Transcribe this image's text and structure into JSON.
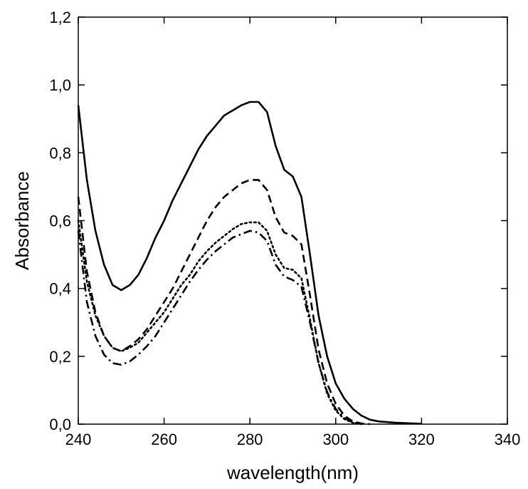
{
  "chart_data": {
    "type": "line",
    "xlabel": "wavelength(nm)",
    "ylabel": "Absorbance",
    "xlim": [
      240,
      340
    ],
    "ylim": [
      0,
      1.2
    ],
    "x_ticks": [
      240,
      260,
      280,
      300,
      320,
      340
    ],
    "x_tick_labels": [
      "240",
      "260",
      "280",
      "300",
      "320",
      "340"
    ],
    "y_ticks": [
      0,
      0.2,
      0.4,
      0.6,
      0.8,
      1.0,
      1.2
    ],
    "y_tick_labels": [
      "0,0",
      "0,2",
      "0,4",
      "0,6",
      "0,8",
      "1,0",
      "1,2"
    ],
    "grid": false,
    "series": [
      {
        "style": "solid",
        "color": "#000000",
        "points": [
          [
            240,
            0.94
          ],
          [
            242,
            0.72
          ],
          [
            244,
            0.57
          ],
          [
            246,
            0.47
          ],
          [
            248,
            0.41
          ],
          [
            250,
            0.395
          ],
          [
            252,
            0.41
          ],
          [
            254,
            0.44
          ],
          [
            256,
            0.49
          ],
          [
            258,
            0.55
          ],
          [
            260,
            0.6
          ],
          [
            262,
            0.66
          ],
          [
            264,
            0.71
          ],
          [
            266,
            0.76
          ],
          [
            268,
            0.81
          ],
          [
            270,
            0.85
          ],
          [
            272,
            0.88
          ],
          [
            274,
            0.91
          ],
          [
            276,
            0.925
          ],
          [
            278,
            0.94
          ],
          [
            280,
            0.95
          ],
          [
            282,
            0.95
          ],
          [
            284,
            0.92
          ],
          [
            286,
            0.82
          ],
          [
            288,
            0.75
          ],
          [
            290,
            0.73
          ],
          [
            292,
            0.67
          ],
          [
            294,
            0.5
          ],
          [
            296,
            0.32
          ],
          [
            298,
            0.2
          ],
          [
            300,
            0.12
          ],
          [
            302,
            0.075
          ],
          [
            304,
            0.045
          ],
          [
            306,
            0.025
          ],
          [
            308,
            0.013
          ],
          [
            310,
            0.008
          ],
          [
            314,
            0.004
          ],
          [
            320,
            0.001
          ]
        ]
      },
      {
        "style": "dashed",
        "color": "#000000",
        "points": [
          [
            240,
            0.67
          ],
          [
            242,
            0.45
          ],
          [
            244,
            0.33
          ],
          [
            246,
            0.26
          ],
          [
            248,
            0.225
          ],
          [
            250,
            0.215
          ],
          [
            252,
            0.23
          ],
          [
            254,
            0.25
          ],
          [
            256,
            0.28
          ],
          [
            258,
            0.32
          ],
          [
            260,
            0.36
          ],
          [
            262,
            0.4
          ],
          [
            264,
            0.45
          ],
          [
            266,
            0.5
          ],
          [
            268,
            0.55
          ],
          [
            270,
            0.6
          ],
          [
            272,
            0.64
          ],
          [
            274,
            0.67
          ],
          [
            276,
            0.69
          ],
          [
            278,
            0.71
          ],
          [
            280,
            0.72
          ],
          [
            282,
            0.72
          ],
          [
            284,
            0.69
          ],
          [
            286,
            0.61
          ],
          [
            288,
            0.565
          ],
          [
            290,
            0.555
          ],
          [
            292,
            0.53
          ],
          [
            294,
            0.38
          ],
          [
            296,
            0.22
          ],
          [
            298,
            0.12
          ],
          [
            300,
            0.06
          ],
          [
            302,
            0.025
          ],
          [
            304,
            0.008
          ],
          [
            306,
            0.002
          ],
          [
            308,
            0
          ]
        ]
      },
      {
        "style": "dotted",
        "color": "#000000",
        "points": [
          [
            240,
            0.6
          ],
          [
            242,
            0.42
          ],
          [
            244,
            0.32
          ],
          [
            246,
            0.26
          ],
          [
            248,
            0.225
          ],
          [
            250,
            0.215
          ],
          [
            252,
            0.225
          ],
          [
            254,
            0.24
          ],
          [
            256,
            0.27
          ],
          [
            258,
            0.3
          ],
          [
            260,
            0.33
          ],
          [
            262,
            0.37
          ],
          [
            264,
            0.41
          ],
          [
            266,
            0.44
          ],
          [
            268,
            0.48
          ],
          [
            270,
            0.51
          ],
          [
            272,
            0.535
          ],
          [
            274,
            0.555
          ],
          [
            276,
            0.575
          ],
          [
            278,
            0.59
          ],
          [
            280,
            0.595
          ],
          [
            282,
            0.595
          ],
          [
            284,
            0.57
          ],
          [
            286,
            0.5
          ],
          [
            288,
            0.46
          ],
          [
            290,
            0.455
          ],
          [
            292,
            0.43
          ],
          [
            294,
            0.31
          ],
          [
            296,
            0.18
          ],
          [
            298,
            0.09
          ],
          [
            300,
            0.04
          ],
          [
            302,
            0.015
          ],
          [
            304,
            0.004
          ],
          [
            306,
            0
          ]
        ]
      },
      {
        "style": "dash-dot",
        "color": "#000000",
        "points": [
          [
            240,
            0.57
          ],
          [
            242,
            0.36
          ],
          [
            244,
            0.26
          ],
          [
            246,
            0.205
          ],
          [
            248,
            0.18
          ],
          [
            250,
            0.175
          ],
          [
            252,
            0.185
          ],
          [
            254,
            0.205
          ],
          [
            256,
            0.23
          ],
          [
            258,
            0.26
          ],
          [
            260,
            0.3
          ],
          [
            262,
            0.34
          ],
          [
            264,
            0.38
          ],
          [
            266,
            0.42
          ],
          [
            268,
            0.455
          ],
          [
            270,
            0.485
          ],
          [
            272,
            0.51
          ],
          [
            274,
            0.53
          ],
          [
            276,
            0.55
          ],
          [
            278,
            0.56
          ],
          [
            280,
            0.57
          ],
          [
            282,
            0.565
          ],
          [
            284,
            0.54
          ],
          [
            286,
            0.47
          ],
          [
            288,
            0.435
          ],
          [
            290,
            0.425
          ],
          [
            292,
            0.405
          ],
          [
            294,
            0.3
          ],
          [
            296,
            0.18
          ],
          [
            298,
            0.095
          ],
          [
            300,
            0.045
          ],
          [
            302,
            0.018
          ],
          [
            304,
            0.005
          ],
          [
            306,
            0
          ]
        ]
      }
    ]
  }
}
